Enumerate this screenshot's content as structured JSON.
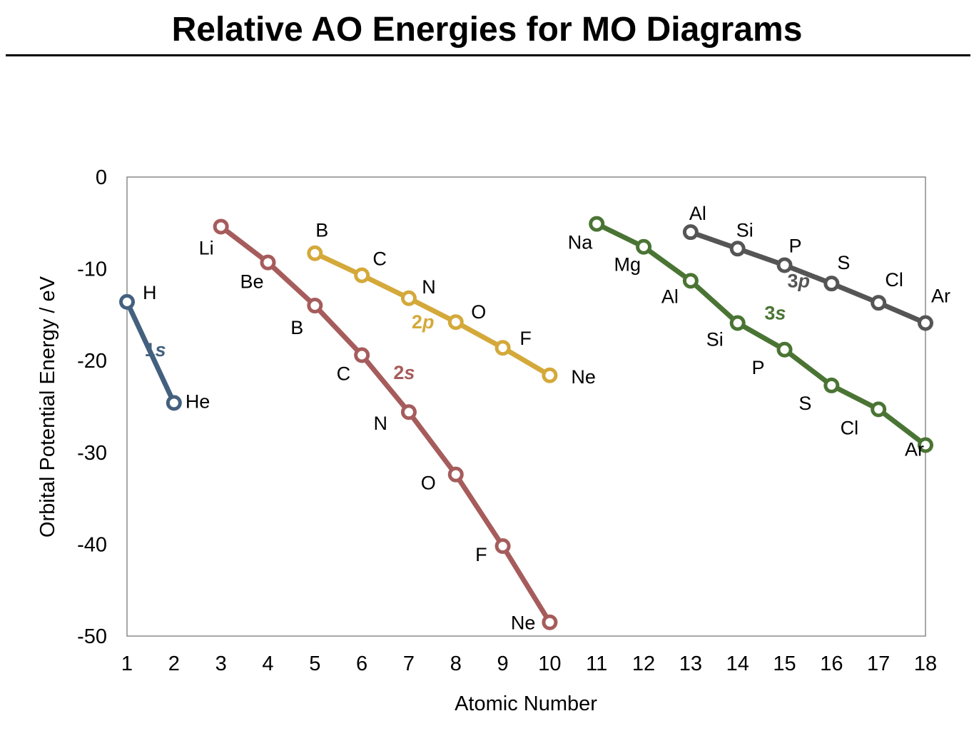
{
  "title": "Relative AO Energies for MO Diagrams",
  "chart_data": {
    "type": "line",
    "xlabel": "Atomic Number",
    "ylabel": "Orbital Potential Energy / eV",
    "xlim": [
      1,
      18
    ],
    "ylim": [
      -50,
      0
    ],
    "xticks": [
      1,
      2,
      3,
      4,
      5,
      6,
      7,
      8,
      9,
      10,
      11,
      12,
      13,
      14,
      15,
      16,
      17,
      18
    ],
    "yticks": [
      0,
      -10,
      -20,
      -30,
      -40,
      -50
    ],
    "grid": false,
    "series": [
      {
        "name": "1s",
        "color": "#44607f",
        "x": [
          1,
          2
        ],
        "y": [
          -13.6,
          -24.6
        ],
        "labels": [
          "H",
          "He"
        ]
      },
      {
        "name": "2s",
        "color": "#a65c5c",
        "x": [
          3,
          4,
          5,
          6,
          7,
          8,
          9,
          10
        ],
        "y": [
          -5.4,
          -9.3,
          -14.0,
          -19.4,
          -25.6,
          -32.4,
          -40.2,
          -48.5
        ],
        "labels": [
          "Li",
          "Be",
          "B",
          "C",
          "N",
          "O",
          "F",
          "Ne"
        ]
      },
      {
        "name": "2p",
        "color": "#d4a93a",
        "x": [
          5,
          6,
          7,
          8,
          9,
          10
        ],
        "y": [
          -8.3,
          -10.7,
          -13.2,
          -15.8,
          -18.6,
          -21.6
        ],
        "labels": [
          "B",
          "C",
          "N",
          "O",
          "F",
          "Ne"
        ]
      },
      {
        "name": "3s",
        "color": "#4a7434",
        "x": [
          11,
          12,
          13,
          14,
          15,
          16,
          17,
          18
        ],
        "y": [
          -5.1,
          -7.6,
          -11.3,
          -15.9,
          -18.8,
          -22.7,
          -25.3,
          -29.2
        ],
        "labels": [
          "Na",
          "Mg",
          "Al",
          "Si",
          "P",
          "S",
          "Cl",
          "Ar"
        ]
      },
      {
        "name": "3p",
        "color": "#555555",
        "x": [
          13,
          14,
          15,
          16,
          17,
          18
        ],
        "y": [
          -6.0,
          -7.8,
          -9.6,
          -11.6,
          -13.7,
          -15.9
        ],
        "labels": [
          "Al",
          "Si",
          "P",
          "S",
          "Cl",
          "Ar"
        ]
      }
    ]
  }
}
